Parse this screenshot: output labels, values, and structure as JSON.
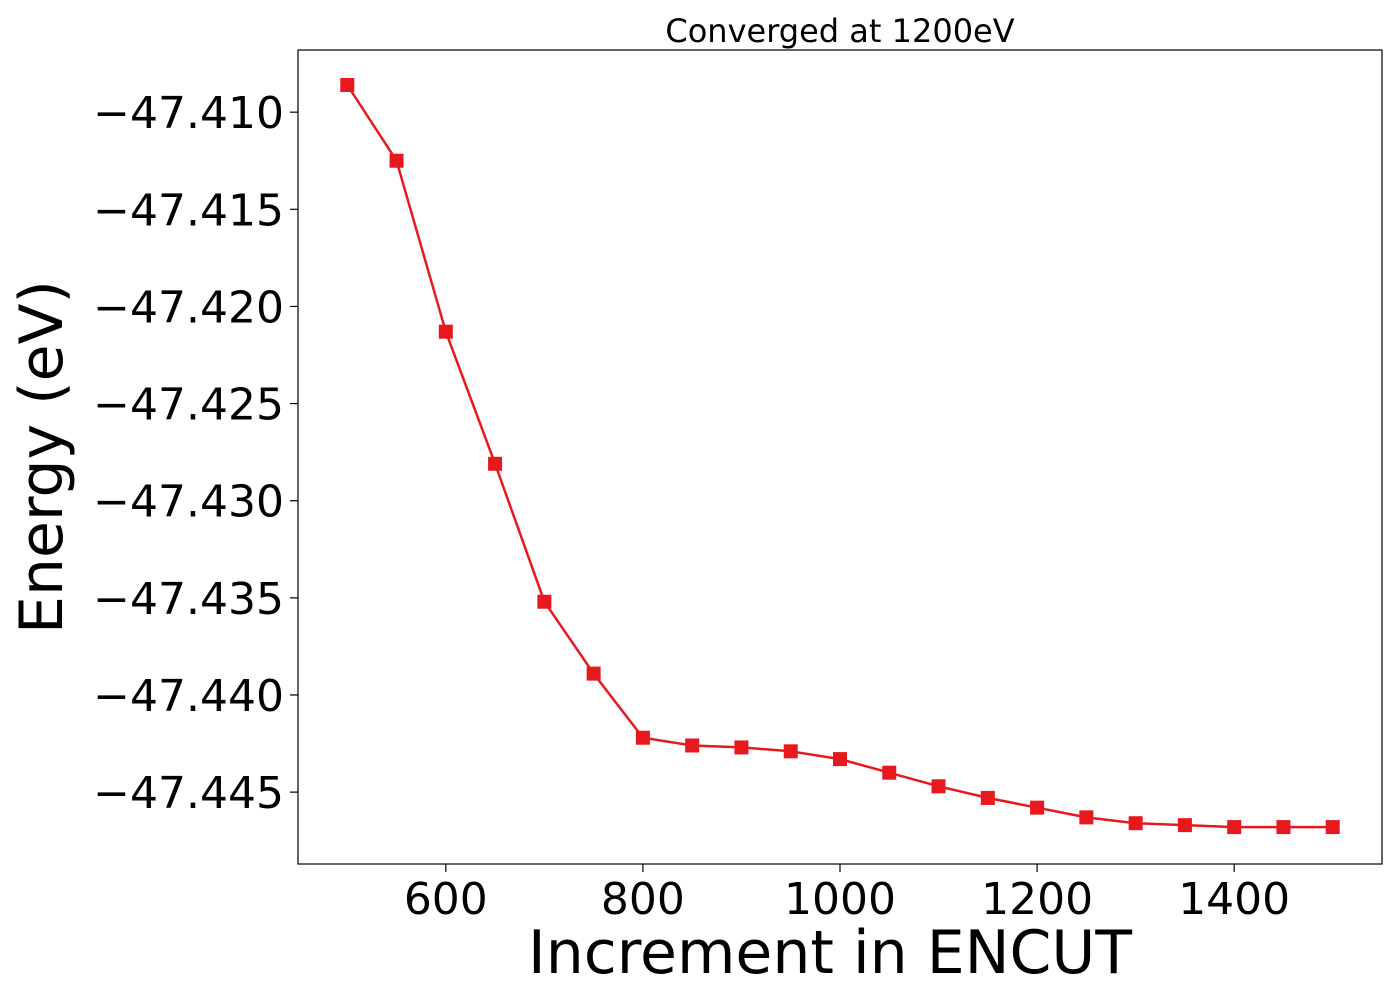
{
  "chart_data": {
    "type": "line",
    "title": "Converged at 1200eV",
    "xlabel": "Increment in ENCUT",
    "ylabel": "Energy (eV)",
    "xlim": [
      450,
      1550
    ],
    "ylim": [
      -47.4487,
      -47.4068
    ],
    "x_ticks": [
      600,
      800,
      1000,
      1200,
      1400
    ],
    "y_ticks": [
      -47.41,
      -47.415,
      -47.42,
      -47.425,
      -47.43,
      -47.435,
      -47.44,
      -47.445
    ],
    "x_tick_labels": [
      "600",
      "800",
      "1000",
      "1200",
      "1400"
    ],
    "y_tick_labels": [
      "−47.410",
      "−47.415",
      "−47.420",
      "−47.425",
      "−47.430",
      "−47.435",
      "−47.440",
      "−47.445"
    ],
    "grid": false,
    "series": [
      {
        "color": "#e8191e",
        "marker": "square",
        "x": [
          500,
          550,
          600,
          650,
          700,
          750,
          800,
          850,
          900,
          950,
          1000,
          1050,
          1100,
          1150,
          1200,
          1250,
          1300,
          1350,
          1400,
          1450,
          1500
        ],
        "y": [
          -47.4086,
          -47.4125,
          -47.4213,
          -47.4281,
          -47.4352,
          -47.4389,
          -47.4422,
          -47.4426,
          -47.4427,
          -47.4429,
          -47.4433,
          -47.444,
          -47.4447,
          -47.4453,
          -47.4458,
          -47.4463,
          -47.4466,
          -47.4467,
          -47.4468,
          -47.4468,
          -47.4468
        ]
      }
    ]
  }
}
